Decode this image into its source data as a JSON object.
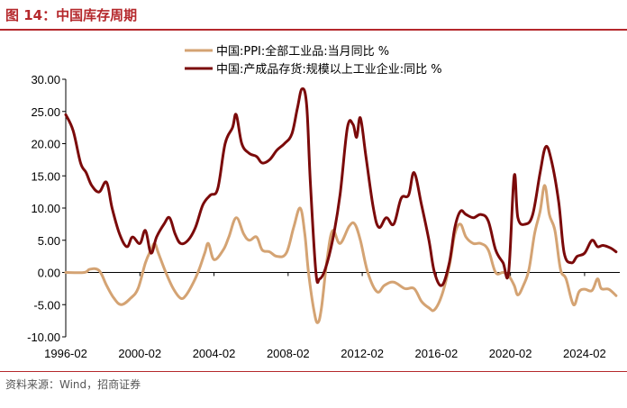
{
  "figure": {
    "title": "图 14：中国库存周期",
    "source": "资料来源：Wind，招商证券"
  },
  "colors": {
    "accent": "#b5282c",
    "ppi": "#d4a373",
    "inventory": "#7b0a0a"
  },
  "chart_data": {
    "type": "line",
    "title": "",
    "xlabel": "",
    "ylabel": "",
    "x_ticks": [
      "1996-02",
      "2000-02",
      "2004-02",
      "2008-02",
      "2012-02",
      "2016-02",
      "2020-02",
      "2024-02"
    ],
    "y_ticks": [
      "30.00",
      "25.00",
      "20.00",
      "15.00",
      "10.00",
      "5.00",
      "0.00",
      "-5.00",
      "-10.00"
    ],
    "ylim": [
      -10,
      30
    ],
    "xlim": [
      1996.0,
      2025.9
    ],
    "grid": false,
    "legend_position": "top",
    "series": [
      {
        "name": "中国:PPI:全部工业品:当月同比 %",
        "color": "#d4a373",
        "points": [
          [
            1996.0,
            0.0
          ],
          [
            1997.0,
            0.0
          ],
          [
            1997.3,
            0.5
          ],
          [
            1997.8,
            0.3
          ],
          [
            1998.2,
            -2.0
          ],
          [
            1998.6,
            -4.0
          ],
          [
            1999.0,
            -5.0
          ],
          [
            1999.5,
            -4.0
          ],
          [
            1999.9,
            -2.5
          ],
          [
            2000.3,
            1.5
          ],
          [
            2000.6,
            3.5
          ],
          [
            2000.8,
            4.5
          ],
          [
            2001.0,
            3.0
          ],
          [
            2001.4,
            0.0
          ],
          [
            2001.8,
            -2.5
          ],
          [
            2002.2,
            -4.0
          ],
          [
            2002.5,
            -3.5
          ],
          [
            2002.9,
            -1.5
          ],
          [
            2003.2,
            0.5
          ],
          [
            2003.5,
            3.0
          ],
          [
            2003.7,
            4.5
          ],
          [
            2004.0,
            2.0
          ],
          [
            2004.5,
            3.5
          ],
          [
            2004.8,
            5.5
          ],
          [
            2005.2,
            8.5
          ],
          [
            2005.6,
            6.0
          ],
          [
            2005.9,
            5.0
          ],
          [
            2006.3,
            5.5
          ],
          [
            2006.6,
            3.5
          ],
          [
            2007.0,
            3.2
          ],
          [
            2007.4,
            2.5
          ],
          [
            2007.9,
            3.0
          ],
          [
            2008.3,
            7.0
          ],
          [
            2008.65,
            10.0
          ],
          [
            2008.9,
            6.0
          ],
          [
            2009.1,
            0.0
          ],
          [
            2009.4,
            -6.0
          ],
          [
            2009.6,
            -7.8
          ],
          [
            2009.8,
            -5.5
          ],
          [
            2010.1,
            2.0
          ],
          [
            2010.4,
            6.5
          ],
          [
            2010.8,
            4.5
          ],
          [
            2011.3,
            7.2
          ],
          [
            2011.6,
            7.5
          ],
          [
            2011.9,
            5.0
          ],
          [
            2012.3,
            0.0
          ],
          [
            2012.8,
            -3.0
          ],
          [
            2013.2,
            -2.0
          ],
          [
            2013.7,
            -1.5
          ],
          [
            2014.3,
            -2.5
          ],
          [
            2014.8,
            -2.5
          ],
          [
            2015.2,
            -4.5
          ],
          [
            2015.6,
            -5.5
          ],
          [
            2015.9,
            -5.8
          ],
          [
            2016.3,
            -3.5
          ],
          [
            2016.7,
            1.0
          ],
          [
            2017.0,
            6.0
          ],
          [
            2017.3,
            7.5
          ],
          [
            2017.6,
            5.5
          ],
          [
            2018.0,
            4.5
          ],
          [
            2018.4,
            4.5
          ],
          [
            2018.8,
            3.5
          ],
          [
            2019.2,
            0.0
          ],
          [
            2019.6,
            0.0
          ],
          [
            2019.9,
            -0.5
          ],
          [
            2020.2,
            -2.0
          ],
          [
            2020.4,
            -3.5
          ],
          [
            2020.7,
            -2.0
          ],
          [
            2021.0,
            0.5
          ],
          [
            2021.3,
            6.0
          ],
          [
            2021.6,
            9.5
          ],
          [
            2021.85,
            13.5
          ],
          [
            2022.1,
            9.0
          ],
          [
            2022.4,
            6.5
          ],
          [
            2022.7,
            0.5
          ],
          [
            2023.0,
            -1.0
          ],
          [
            2023.4,
            -5.0
          ],
          [
            2023.7,
            -3.0
          ],
          [
            2024.0,
            -2.6
          ],
          [
            2024.4,
            -2.8
          ],
          [
            2024.7,
            -1.0
          ],
          [
            2024.9,
            -2.5
          ],
          [
            2025.3,
            -2.6
          ],
          [
            2025.7,
            -3.6
          ]
        ]
      },
      {
        "name": "中国:产成品存货:规模以上工业企业:同比 %",
        "color": "#7b0a0a",
        "points": [
          [
            1996.0,
            24.5
          ],
          [
            1996.4,
            22.0
          ],
          [
            1996.8,
            17.0
          ],
          [
            1997.1,
            15.5
          ],
          [
            1997.4,
            13.5
          ],
          [
            1997.8,
            12.5
          ],
          [
            1998.2,
            14.0
          ],
          [
            1998.5,
            10.0
          ],
          [
            1998.9,
            6.0
          ],
          [
            1999.3,
            4.0
          ],
          [
            1999.6,
            5.5
          ],
          [
            2000.0,
            4.5
          ],
          [
            2000.3,
            6.5
          ],
          [
            2000.6,
            3.0
          ],
          [
            2000.9,
            5.5
          ],
          [
            2001.3,
            7.5
          ],
          [
            2001.6,
            8.5
          ],
          [
            2001.9,
            6.0
          ],
          [
            2002.2,
            4.5
          ],
          [
            2002.6,
            5.0
          ],
          [
            2003.0,
            7.0
          ],
          [
            2003.4,
            10.5
          ],
          [
            2003.8,
            12.0
          ],
          [
            2004.2,
            13.0
          ],
          [
            2004.6,
            20.0
          ],
          [
            2005.0,
            22.5
          ],
          [
            2005.2,
            24.5
          ],
          [
            2005.5,
            20.0
          ],
          [
            2005.9,
            18.5
          ],
          [
            2006.3,
            18.0
          ],
          [
            2006.6,
            17.0
          ],
          [
            2007.0,
            17.5
          ],
          [
            2007.4,
            19.0
          ],
          [
            2007.8,
            20.0
          ],
          [
            2008.2,
            21.5
          ],
          [
            2008.5,
            25.5
          ],
          [
            2008.75,
            28.5
          ],
          [
            2009.0,
            26.0
          ],
          [
            2009.2,
            14.0
          ],
          [
            2009.5,
            0.0
          ],
          [
            2009.7,
            -1.0
          ],
          [
            2010.0,
            0.5
          ],
          [
            2010.4,
            5.0
          ],
          [
            2010.8,
            12.0
          ],
          [
            2011.2,
            22.5
          ],
          [
            2011.5,
            23.0
          ],
          [
            2011.7,
            21.0
          ],
          [
            2011.9,
            24.0
          ],
          [
            2012.2,
            18.0
          ],
          [
            2012.6,
            10.0
          ],
          [
            2012.9,
            7.0
          ],
          [
            2013.3,
            8.5
          ],
          [
            2013.7,
            7.5
          ],
          [
            2014.1,
            11.5
          ],
          [
            2014.5,
            12.0
          ],
          [
            2014.8,
            15.5
          ],
          [
            2015.2,
            10.5
          ],
          [
            2015.6,
            5.0
          ],
          [
            2015.9,
            0.0
          ],
          [
            2016.3,
            -2.0
          ],
          [
            2016.7,
            1.5
          ],
          [
            2017.0,
            7.0
          ],
          [
            2017.3,
            9.5
          ],
          [
            2017.6,
            9.0
          ],
          [
            2018.0,
            8.5
          ],
          [
            2018.4,
            9.0
          ],
          [
            2018.8,
            8.0
          ],
          [
            2019.2,
            3.5
          ],
          [
            2019.6,
            1.5
          ],
          [
            2019.9,
            0.0
          ],
          [
            2020.2,
            15.0
          ],
          [
            2020.4,
            8.5
          ],
          [
            2020.8,
            7.5
          ],
          [
            2021.2,
            9.0
          ],
          [
            2021.6,
            15.5
          ],
          [
            2021.9,
            19.5
          ],
          [
            2022.2,
            17.5
          ],
          [
            2022.6,
            11.0
          ],
          [
            2022.9,
            3.0
          ],
          [
            2023.3,
            1.5
          ],
          [
            2023.6,
            2.5
          ],
          [
            2024.0,
            3.0
          ],
          [
            2024.4,
            5.0
          ],
          [
            2024.7,
            4.0
          ],
          [
            2025.0,
            4.2
          ],
          [
            2025.4,
            3.8
          ],
          [
            2025.7,
            3.2
          ]
        ]
      }
    ]
  }
}
